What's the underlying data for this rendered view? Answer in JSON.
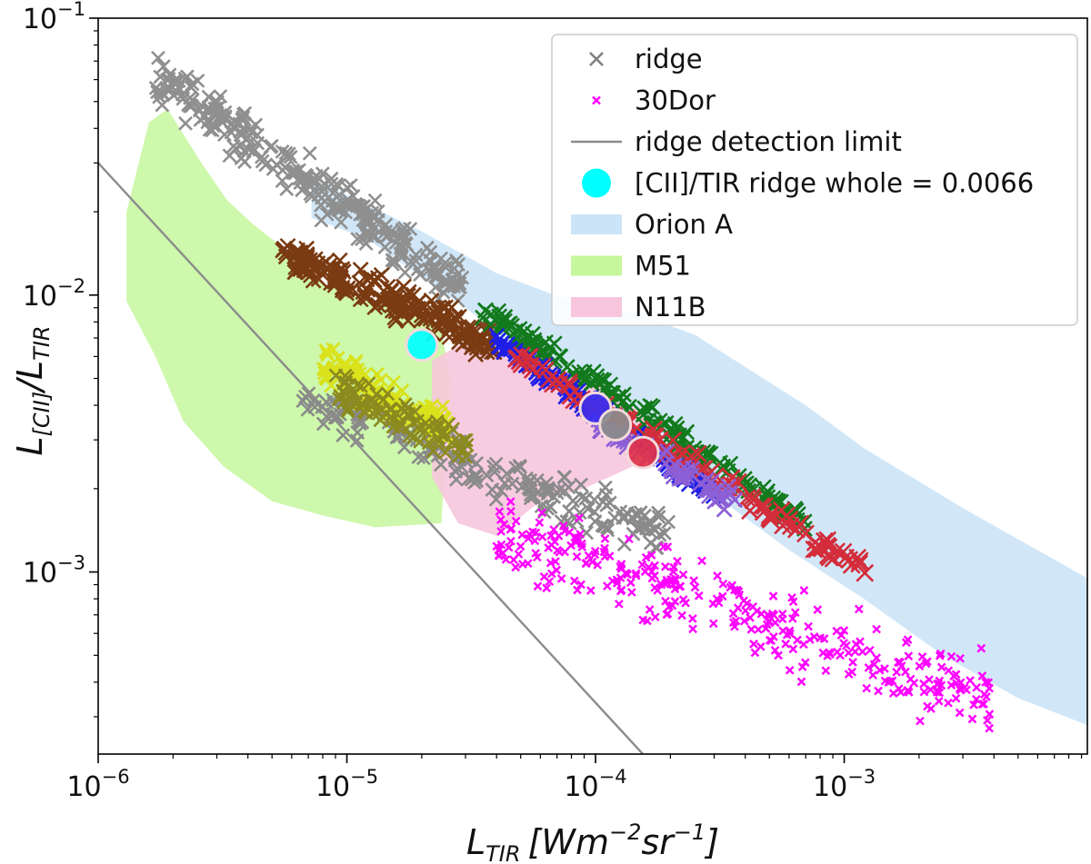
{
  "chart_data": {
    "type": "scatter",
    "scale": {
      "x": "log",
      "y": "log"
    },
    "xlim": [
      1e-06,
      0.0095
    ],
    "ylim": [
      0.00022,
      0.1
    ],
    "xlabel": {
      "main": "L",
      "sub": "TIR",
      "unit": "[Wm",
      "exp1": "−2",
      "mid": "sr",
      "exp2": "−1",
      "close": "]"
    },
    "ylabel": {
      "num": "L",
      "num_sub": "[CII]",
      "slash": "/",
      "den": "L",
      "den_sub": "TIR"
    },
    "x_ticks": [
      {
        "value": 1e-06,
        "base": "10",
        "exp": "−6"
      },
      {
        "value": 1e-05,
        "base": "10",
        "exp": "−5"
      },
      {
        "value": 0.0001,
        "base": "10",
        "exp": "−4"
      },
      {
        "value": 0.001,
        "base": "10",
        "exp": "−3"
      }
    ],
    "y_ticks": [
      {
        "value": 0.001,
        "base": "10",
        "exp": "−3"
      },
      {
        "value": 0.01,
        "base": "10",
        "exp": "−2"
      },
      {
        "value": 0.1,
        "base": "10",
        "exp": "−1"
      }
    ],
    "legend": {
      "position": "top-right",
      "entries": [
        {
          "label": "ridge",
          "kind": "cross",
          "color": "#808080"
        },
        {
          "label": "30Dor",
          "kind": "smallcross",
          "color": "#ff00ff"
        },
        {
          "label": "ridge detection limit",
          "kind": "line",
          "color": "#8c8c8c"
        },
        {
          "label": "[CII]/TIR ridge whole = 0.0066",
          "kind": "circle",
          "color": "#00ffff"
        },
        {
          "label": "Orion A",
          "kind": "patch",
          "color": "#cce4f7"
        },
        {
          "label": "M51",
          "kind": "patch",
          "color": "#c6f79c"
        },
        {
          "label": "N11B",
          "kind": "patch",
          "color": "#f7c6dd"
        }
      ]
    },
    "regions": [
      {
        "name": "Orion A",
        "color": "#cce4f7",
        "opacity": 0.9,
        "points": [
          [
            7.2e-06,
            0.027
          ],
          [
            1e-05,
            0.023
          ],
          [
            2e-05,
            0.017
          ],
          [
            4e-05,
            0.012
          ],
          [
            8e-05,
            0.0095
          ],
          [
            0.00015,
            0.0085
          ],
          [
            0.00025,
            0.0072
          ],
          [
            0.0004,
            0.0055
          ],
          [
            0.0007,
            0.004
          ],
          [
            0.0012,
            0.0028
          ],
          [
            0.003,
            0.0017
          ],
          [
            0.0095,
            0.00095
          ],
          [
            0.0095,
            0.00028
          ],
          [
            0.005,
            0.00035
          ],
          [
            0.0025,
            0.0005
          ],
          [
            0.0012,
            0.0008
          ],
          [
            0.0006,
            0.0012
          ],
          [
            0.0003,
            0.0019
          ],
          [
            0.00015,
            0.003
          ],
          [
            7e-05,
            0.005
          ],
          [
            3e-05,
            0.009
          ],
          [
            1.2e-05,
            0.016
          ],
          [
            7.2e-06,
            0.019
          ]
        ]
      },
      {
        "name": "M51",
        "color": "#c6f79c",
        "opacity": 0.85,
        "points": [
          [
            1.3e-06,
            0.02
          ],
          [
            1.6e-06,
            0.042
          ],
          [
            1.9e-06,
            0.047
          ],
          [
            2.6e-06,
            0.03
          ],
          [
            3.3e-06,
            0.022
          ],
          [
            4.2e-06,
            0.018
          ],
          [
            6e-06,
            0.014
          ],
          [
            8e-06,
            0.011
          ],
          [
            1.2e-05,
            0.0095
          ],
          [
            1.8e-05,
            0.0085
          ],
          [
            2.4e-05,
            0.0075
          ],
          [
            2.6e-05,
            0.005
          ],
          [
            2.5e-05,
            0.0028
          ],
          [
            2.4e-05,
            0.0015
          ],
          [
            1.3e-05,
            0.00145
          ],
          [
            8e-06,
            0.0016
          ],
          [
            5e-06,
            0.0018
          ],
          [
            3.2e-06,
            0.0024
          ],
          [
            2.2e-06,
            0.0035
          ],
          [
            1.7e-06,
            0.006
          ],
          [
            1.3e-06,
            0.0095
          ]
        ]
      },
      {
        "name": "N11B",
        "color": "#f7c6dd",
        "opacity": 0.9,
        "points": [
          [
            2.2e-05,
            0.0058
          ],
          [
            3e-05,
            0.0068
          ],
          [
            6e-05,
            0.0058
          ],
          [
            0.0001,
            0.0048
          ],
          [
            0.00015,
            0.0038
          ],
          [
            0.00018,
            0.003
          ],
          [
            0.00014,
            0.0024
          ],
          [
            9e-05,
            0.002
          ],
          [
            6e-05,
            0.0018
          ],
          [
            4e-05,
            0.00135
          ],
          [
            2.8e-05,
            0.0015
          ],
          [
            2.2e-05,
            0.0022
          ]
        ]
      }
    ],
    "detection_limit": {
      "color": "#8c8c8c",
      "points": [
        [
          1e-06,
          0.03
        ],
        [
          0.000155,
          0.00022
        ]
      ]
    },
    "clusters": [
      {
        "name": "ridge-upper",
        "color": "#8f8f8f",
        "n": 260,
        "xr": [
          1.7e-06,
          3e-05
        ],
        "y0": 0.062,
        "slope": -0.62,
        "spread": 0.13,
        "size": 7
      },
      {
        "name": "ridge-lower",
        "color": "#8a8a8a",
        "n": 180,
        "xr": [
          6e-06,
          0.0002
        ],
        "y0": 0.0045,
        "slope": -0.35,
        "spread": 0.12,
        "size": 7
      },
      {
        "name": "brown",
        "color": "#7a3a12",
        "n": 200,
        "xr": [
          5.5e-06,
          4e-05
        ],
        "y0": 0.014,
        "slope": -0.38,
        "spread": 0.09,
        "size": 8
      },
      {
        "name": "yellow",
        "color": "#d9e21a",
        "n": 120,
        "xr": [
          8e-06,
          2.6e-05
        ],
        "y0": 0.0055,
        "slope": -0.45,
        "spread": 0.11,
        "size": 7
      },
      {
        "name": "olive",
        "color": "#8b8a1f",
        "n": 90,
        "xr": [
          9e-06,
          3.2e-05
        ],
        "y0": 0.0046,
        "slope": -0.4,
        "spread": 0.1,
        "size": 7
      },
      {
        "name": "green",
        "color": "#127a1c",
        "n": 160,
        "xr": [
          3.5e-05,
          0.0007
        ],
        "y0": 0.009,
        "slope": -0.6,
        "spread": 0.06,
        "size": 8
      },
      {
        "name": "blue",
        "color": "#1e1ee6",
        "n": 140,
        "xr": [
          4e-05,
          0.0003
        ],
        "y0": 0.0068,
        "slope": -0.62,
        "spread": 0.05,
        "size": 8
      },
      {
        "name": "red",
        "color": "#d42c3a",
        "n": 110,
        "xr": [
          4.5e-05,
          0.0013
        ],
        "y0": 0.0062,
        "slope": -0.55,
        "spread": 0.07,
        "size": 9
      },
      {
        "name": "violet",
        "color": "#8c5fd6",
        "n": 60,
        "xr": [
          0.0001,
          0.0004
        ],
        "y0": 0.0034,
        "slope": -0.5,
        "spread": 0.06,
        "size": 8
      },
      {
        "name": "30Dor",
        "color": "#ff00ff",
        "n": 330,
        "xr": [
          4e-05,
          0.004
        ],
        "y0": 0.0014,
        "slope": -0.3,
        "spread": 0.2,
        "size": 4
      }
    ],
    "highlight_points": [
      {
        "name": "ridge whole",
        "x": 2e-05,
        "y": 0.0066,
        "fill": "#00ffff"
      },
      {
        "name": "blue group",
        "x": 0.0001,
        "y": 0.0039,
        "fill": "#3b2ff0"
      },
      {
        "name": "grey group",
        "x": 0.00012,
        "y": 0.0034,
        "fill": "#8c8c8c"
      },
      {
        "name": "red group",
        "x": 0.000155,
        "y": 0.0027,
        "fill": "#e0334a"
      }
    ]
  }
}
